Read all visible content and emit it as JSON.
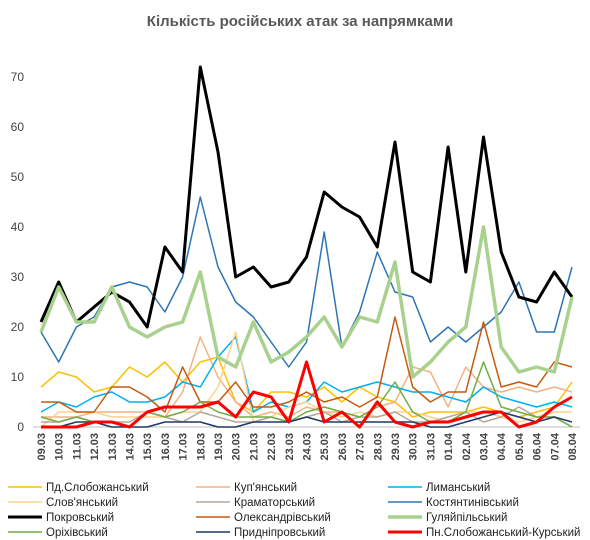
{
  "chart_data": {
    "type": "line",
    "title": "Кількість російських атак за напрямками",
    "categories": [
      "09.03",
      "10.03",
      "11.03",
      "12.03",
      "13.03",
      "14.03",
      "15.03",
      "16.03",
      "17.03",
      "18.03",
      "19.03",
      "20.03",
      "21.03",
      "22.03",
      "23.03",
      "24.03",
      "25.03",
      "26.03",
      "27.03",
      "28.03",
      "29.03",
      "30.03",
      "31.03",
      "01.04",
      "02.04",
      "03.04",
      "04.04",
      "05.04",
      "06.04",
      "07.04",
      "08.04"
    ],
    "ylim": [
      0,
      70
    ],
    "yticks": [
      0,
      10,
      20,
      30,
      40,
      50,
      60,
      70
    ],
    "grid": false,
    "series": [
      {
        "name": "Пд.Слобожанський",
        "color": "#ffc000",
        "linewidth": 1.5,
        "values": [
          8,
          11,
          10,
          7,
          8,
          12,
          10,
          13,
          9,
          13,
          14,
          5,
          3,
          7,
          7,
          6,
          8,
          5,
          8,
          6,
          5,
          2,
          3,
          3,
          3,
          4,
          3,
          2,
          3,
          4,
          9
        ]
      },
      {
        "name": "Куп'янський",
        "color": "#f4b183",
        "linewidth": 1.5,
        "values": [
          2,
          2,
          2,
          3,
          3,
          3,
          3,
          2,
          7,
          18,
          10,
          5,
          2,
          3,
          2,
          4,
          3,
          3,
          2,
          4,
          5,
          12,
          11,
          4,
          12,
          8,
          7,
          8,
          7,
          8,
          7
        ]
      },
      {
        "name": "Лиманський",
        "color": "#00b0f0",
        "linewidth": 1.5,
        "values": [
          3,
          5,
          4,
          6,
          7,
          5,
          5,
          6,
          9,
          8,
          14,
          18,
          3,
          5,
          4,
          5,
          9,
          7,
          8,
          9,
          8,
          7,
          7,
          6,
          5,
          8,
          6,
          5,
          4,
          5,
          4
        ]
      },
      {
        "name": "Слов'янський",
        "color": "#ffd28a",
        "linewidth": 1.5,
        "values": [
          0,
          3,
          3,
          3,
          2,
          2,
          2,
          2,
          3,
          3,
          8,
          19,
          1,
          2,
          4,
          5,
          3,
          2,
          3,
          2,
          3,
          3,
          2,
          1,
          3,
          3,
          2,
          1,
          2,
          3,
          3
        ]
      },
      {
        "name": "Краматорський",
        "color": "#b4a79a",
        "linewidth": 1.5,
        "values": [
          1,
          1,
          2,
          1,
          1,
          1,
          3,
          2,
          1,
          3,
          2,
          1,
          1,
          2,
          1,
          2,
          3,
          1,
          2,
          2,
          3,
          1,
          1,
          2,
          3,
          1,
          2,
          4,
          2,
          2,
          0
        ]
      },
      {
        "name": "Костянтинівський",
        "color": "#2e75b6",
        "linewidth": 1.5,
        "values": [
          19,
          13,
          20,
          22,
          28,
          29,
          28,
          23,
          30,
          46,
          32,
          25,
          22,
          17,
          12,
          17,
          39,
          16,
          23,
          35,
          27,
          26,
          17,
          20,
          17,
          20,
          23,
          29,
          19,
          19,
          32
        ]
      },
      {
        "name": "Покровський",
        "color": "#000000",
        "linewidth": 3,
        "values": [
          21,
          29,
          21,
          24,
          27,
          25,
          20,
          36,
          31,
          72,
          55,
          30,
          32,
          28,
          29,
          34,
          47,
          44,
          42,
          36,
          57,
          31,
          29,
          56,
          31,
          58,
          35,
          26,
          25,
          31,
          26
        ]
      },
      {
        "name": "Олександрівський",
        "color": "#c55a11",
        "linewidth": 1.5,
        "values": [
          5,
          5,
          3,
          3,
          8,
          8,
          6,
          3,
          12,
          5,
          5,
          9,
          4,
          4,
          5,
          7,
          5,
          6,
          4,
          6,
          22,
          8,
          5,
          7,
          7,
          21,
          8,
          9,
          8,
          13,
          12
        ]
      },
      {
        "name": "Гуляйпільський",
        "color": "#a9d18e",
        "linewidth": 3.5,
        "values": [
          19,
          28,
          21,
          21,
          28,
          20,
          18,
          20,
          21,
          31,
          14,
          12,
          21,
          13,
          15,
          18,
          22,
          16,
          22,
          21,
          33,
          10,
          13,
          17,
          20,
          40,
          16,
          11,
          12,
          11,
          26
        ]
      },
      {
        "name": "Оріхівський",
        "color": "#70ad47",
        "linewidth": 1.5,
        "values": [
          2,
          1,
          2,
          1,
          1,
          0,
          3,
          2,
          3,
          5,
          3,
          2,
          2,
          2,
          1,
          3,
          4,
          3,
          2,
          4,
          9,
          3,
          1,
          1,
          3,
          13,
          4,
          3,
          2,
          2,
          0
        ]
      },
      {
        "name": "Придніпровський",
        "color": "#1f3864",
        "linewidth": 1.5,
        "values": [
          0,
          0,
          1,
          1,
          0,
          0,
          0,
          1,
          1,
          1,
          0,
          0,
          1,
          1,
          1,
          2,
          1,
          1,
          1,
          1,
          1,
          1,
          0,
          0,
          1,
          2,
          3,
          2,
          1,
          2,
          1
        ]
      },
      {
        "name": "Пн.Слобожанський-Курський",
        "color": "#ff0000",
        "linewidth": 3,
        "values": [
          0,
          0,
          0,
          1,
          1,
          0,
          3,
          4,
          4,
          4,
          5,
          2,
          7,
          6,
          1,
          13,
          1,
          3,
          0,
          5,
          1,
          0,
          1,
          1,
          2,
          3,
          3,
          0,
          1,
          4,
          6
        ]
      }
    ]
  }
}
